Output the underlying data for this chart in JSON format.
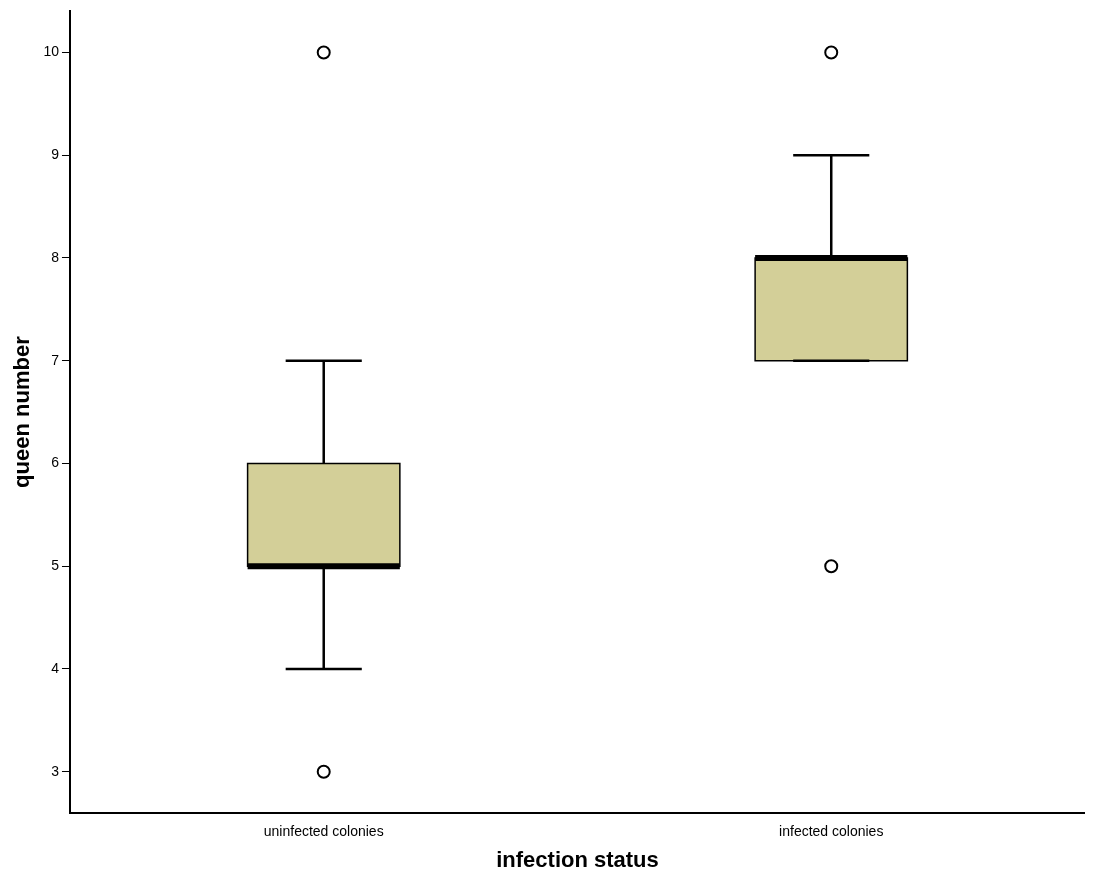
{
  "chart_data": {
    "type": "box",
    "xlabel": "infection status",
    "ylabel": "queen number",
    "categories": [
      "uninfected colonies",
      "infected colonies"
    ],
    "color": "#d3cf98",
    "boxes": [
      {
        "low": 4,
        "q1": 5,
        "median": 5,
        "q3": 6,
        "high": 7,
        "outliers": [
          3,
          10
        ]
      },
      {
        "low": 7,
        "q1": 7,
        "median": 8,
        "q3": 8,
        "high": 9,
        "outliers": [
          5,
          10
        ]
      }
    ],
    "ylim": [
      2.6,
      10.4
    ],
    "yticks": [
      3,
      4,
      5,
      6,
      7,
      8,
      9,
      10
    ],
    "grid": false,
    "legend": false
  }
}
